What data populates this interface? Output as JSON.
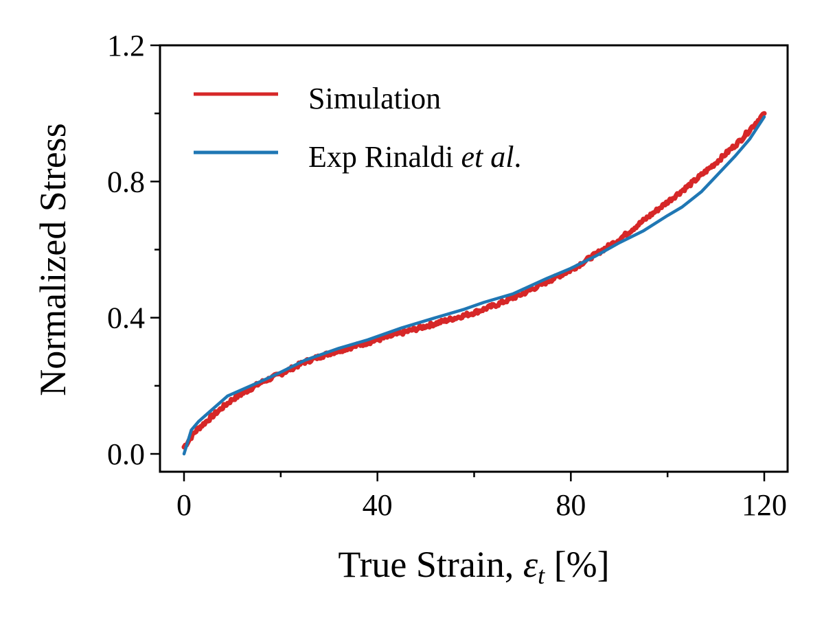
{
  "chart_data": {
    "type": "line",
    "title": "",
    "xlabel": "True Strain, εt [%]",
    "xlabel_parts": {
      "main": "True Strain, ",
      "symbol": "ε",
      "subscript": "t",
      "unit": " [%]"
    },
    "ylabel": "Normalized Stress",
    "xlim": [
      -5,
      125
    ],
    "ylim": [
      -0.05,
      1.2
    ],
    "xticks": [
      0,
      40,
      80,
      120
    ],
    "xtick_labels": [
      "0",
      "40",
      "80",
      "120"
    ],
    "x_minor_ticks": [
      20,
      60,
      100
    ],
    "yticks": [
      0.0,
      0.4,
      0.8,
      1.2
    ],
    "ytick_labels": [
      "0.0",
      "0.4",
      "0.8",
      "1.2"
    ],
    "y_minor_ticks": [
      0.2,
      0.6,
      1.0
    ],
    "grid": false,
    "legend_position": "top-left",
    "series": [
      {
        "name": "Simulation",
        "legend_label": "Simulation",
        "color": "#d62728",
        "noisy": true,
        "x": [
          0,
          1,
          2,
          3,
          5,
          7,
          10,
          13,
          16,
          20,
          25,
          30,
          35,
          40,
          45,
          50,
          55,
          60,
          65,
          70,
          75,
          80,
          85,
          90,
          95,
          100,
          105,
          110,
          115,
          120
        ],
        "y": [
          0.02,
          0.04,
          0.06,
          0.075,
          0.1,
          0.125,
          0.16,
          0.185,
          0.21,
          0.235,
          0.27,
          0.295,
          0.315,
          0.335,
          0.355,
          0.375,
          0.395,
          0.415,
          0.44,
          0.47,
          0.505,
          0.54,
          0.585,
          0.63,
          0.685,
          0.74,
          0.795,
          0.855,
          0.92,
          1.0
        ]
      },
      {
        "name": "Exp Rinaldi et al.",
        "legend_label": {
          "main": "Exp Rinaldi ",
          "italic": "et al",
          "suffix": "."
        },
        "color": "#1f77b4",
        "noisy": false,
        "x": [
          0,
          1.5,
          3,
          5,
          7,
          9,
          13,
          17,
          20,
          25,
          32,
          38,
          45,
          52,
          58,
          62,
          68,
          75,
          80,
          85,
          90,
          95,
          100,
          103,
          107,
          110,
          114,
          117,
          120
        ],
        "y": [
          0.0,
          0.07,
          0.095,
          0.12,
          0.145,
          0.17,
          0.195,
          0.22,
          0.24,
          0.275,
          0.31,
          0.335,
          0.37,
          0.4,
          0.425,
          0.445,
          0.47,
          0.515,
          0.545,
          0.58,
          0.62,
          0.655,
          0.7,
          0.725,
          0.77,
          0.815,
          0.875,
          0.925,
          0.99
        ]
      }
    ]
  }
}
